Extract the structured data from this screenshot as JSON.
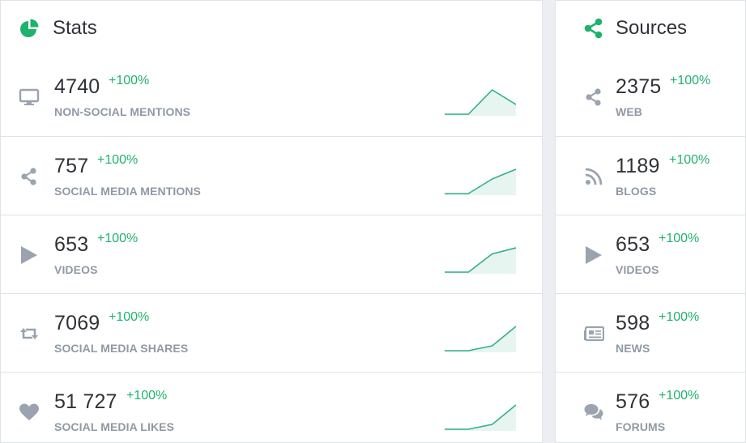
{
  "colors": {
    "accent": "#1fb26d",
    "icon": "#9aa3ae",
    "spark_line": "#33b089",
    "spark_fill": "#e6f5ef"
  },
  "stats": {
    "title": "Stats",
    "icon": "pie-chart-icon",
    "rows": [
      {
        "icon": "monitor-icon",
        "value": "4740",
        "change": "+100%",
        "label": "NON-SOCIAL MENTIONS",
        "trend": [
          0,
          0,
          1,
          0.4
        ]
      },
      {
        "icon": "share-icon",
        "value": "757",
        "change": "+100%",
        "label": "SOCIAL MEDIA MENTIONS",
        "trend": [
          0,
          0,
          0.6,
          1
        ]
      },
      {
        "icon": "play-icon",
        "value": "653",
        "change": "+100%",
        "label": "VIDEOS",
        "trend": [
          0,
          0,
          0.75,
          1
        ]
      },
      {
        "icon": "retweet-icon",
        "value": "7069",
        "change": "+100%",
        "label": "SOCIAL MEDIA SHARES",
        "trend": [
          0,
          0,
          0.2,
          1
        ]
      },
      {
        "icon": "heart-icon",
        "value": "51 727",
        "change": "+100%",
        "label": "SOCIAL MEDIA LIKES",
        "trend": [
          0,
          0,
          0.2,
          1
        ]
      }
    ]
  },
  "sources": {
    "title": "Sources",
    "icon": "share-icon",
    "rows": [
      {
        "icon": "share-icon",
        "value": "2375",
        "change": "+100%",
        "label": "WEB"
      },
      {
        "icon": "rss-icon",
        "value": "1189",
        "change": "+100%",
        "label": "BLOGS"
      },
      {
        "icon": "play-icon",
        "value": "653",
        "change": "+100%",
        "label": "VIDEOS"
      },
      {
        "icon": "newspaper-icon",
        "value": "598",
        "change": "+100%",
        "label": "NEWS"
      },
      {
        "icon": "chat-bubbles-icon",
        "value": "576",
        "change": "+100%",
        "label": "FORUMS"
      }
    ]
  }
}
